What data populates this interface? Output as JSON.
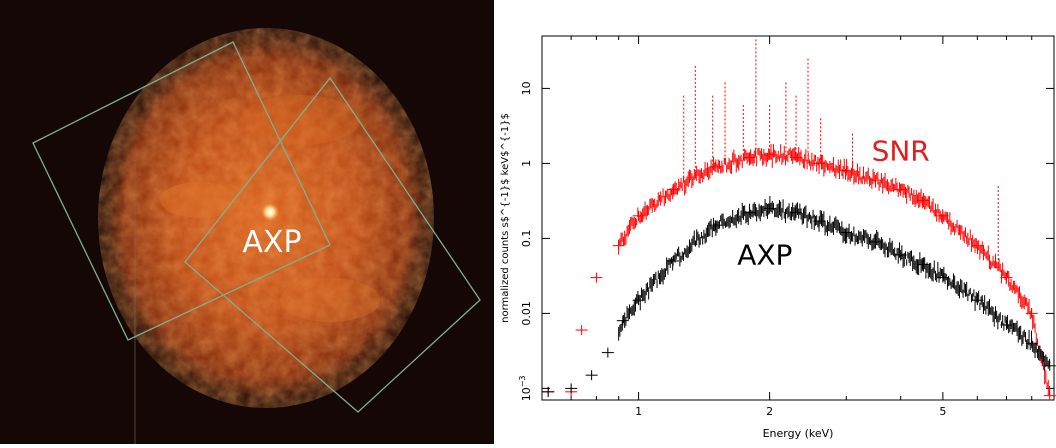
{
  "image_panel": {
    "label": "AXP",
    "colors": {
      "background": "#140705",
      "glow": "#c04a10",
      "frame": "#7fae8f"
    }
  },
  "chart_data": {
    "type": "scatter",
    "xscale": "log",
    "yscale": "log",
    "xlim": [
      0.6,
      9
    ],
    "ylim": [
      0.0007,
      50
    ],
    "xlabel": "Energy (keV)",
    "ylabel": "normalized counts s$^{-1}$ keV$^{-1}$",
    "xticks": [
      {
        "value": 1,
        "label": "1"
      },
      {
        "value": 2,
        "label": "2"
      },
      {
        "value": 5,
        "label": "5"
      }
    ],
    "yticks": [
      {
        "value": 0.001,
        "label": "10",
        "sup": "−3"
      },
      {
        "value": 0.01,
        "label": "0.01"
      },
      {
        "value": 0.1,
        "label": "0.1"
      },
      {
        "value": 1,
        "label": "1"
      },
      {
        "value": 10,
        "label": "10"
      }
    ],
    "annotations": [
      {
        "text": "SNR",
        "x": 4.0,
        "y": 1.1,
        "color": "#e02020"
      },
      {
        "text": "AXP",
        "x": 1.95,
        "y": 0.045,
        "color": "#000000"
      }
    ],
    "series": [
      {
        "color": "#ff0000",
        "x": [
          0.62,
          0.7,
          0.74,
          0.8,
          0.9,
          1.0,
          1.2,
          1.5,
          1.8,
          2.0,
          2.3,
          2.6,
          3.0,
          3.5,
          4.0,
          4.5,
          5.0,
          6.0,
          7.0,
          8.0,
          8.8
        ],
        "y": [
          0.0009,
          0.0009,
          0.006,
          0.03,
          0.08,
          0.2,
          0.45,
          0.9,
          1.2,
          1.3,
          1.2,
          1.0,
          0.8,
          0.6,
          0.45,
          0.32,
          0.2,
          0.08,
          0.03,
          0.01,
          0.0008
        ],
        "lines": [
          {
            "x": 1.27,
            "y": 8
          },
          {
            "x": 1.35,
            "y": 20
          },
          {
            "x": 1.48,
            "y": 8
          },
          {
            "x": 1.58,
            "y": 12
          },
          {
            "x": 1.74,
            "y": 6
          },
          {
            "x": 1.86,
            "y": 45
          },
          {
            "x": 2.0,
            "y": 6
          },
          {
            "x": 2.18,
            "y": 12
          },
          {
            "x": 2.3,
            "y": 8
          },
          {
            "x": 2.45,
            "y": 25
          },
          {
            "x": 2.62,
            "y": 4
          },
          {
            "x": 3.1,
            "y": 2.5
          },
          {
            "x": 6.7,
            "y": 0.5
          }
        ]
      },
      {
        "color": "#000000",
        "x": [
          0.62,
          0.7,
          0.78,
          0.85,
          0.92,
          1.0,
          1.2,
          1.5,
          1.8,
          2.0,
          2.3,
          2.6,
          3.0,
          3.5,
          4.0,
          4.5,
          5.0,
          6.0,
          7.0,
          8.0,
          8.8
        ],
        "y": [
          0.0009,
          0.001,
          0.0015,
          0.003,
          0.008,
          0.015,
          0.05,
          0.15,
          0.22,
          0.25,
          0.22,
          0.17,
          0.12,
          0.09,
          0.06,
          0.045,
          0.03,
          0.015,
          0.007,
          0.004,
          0.002
        ]
      }
    ]
  }
}
